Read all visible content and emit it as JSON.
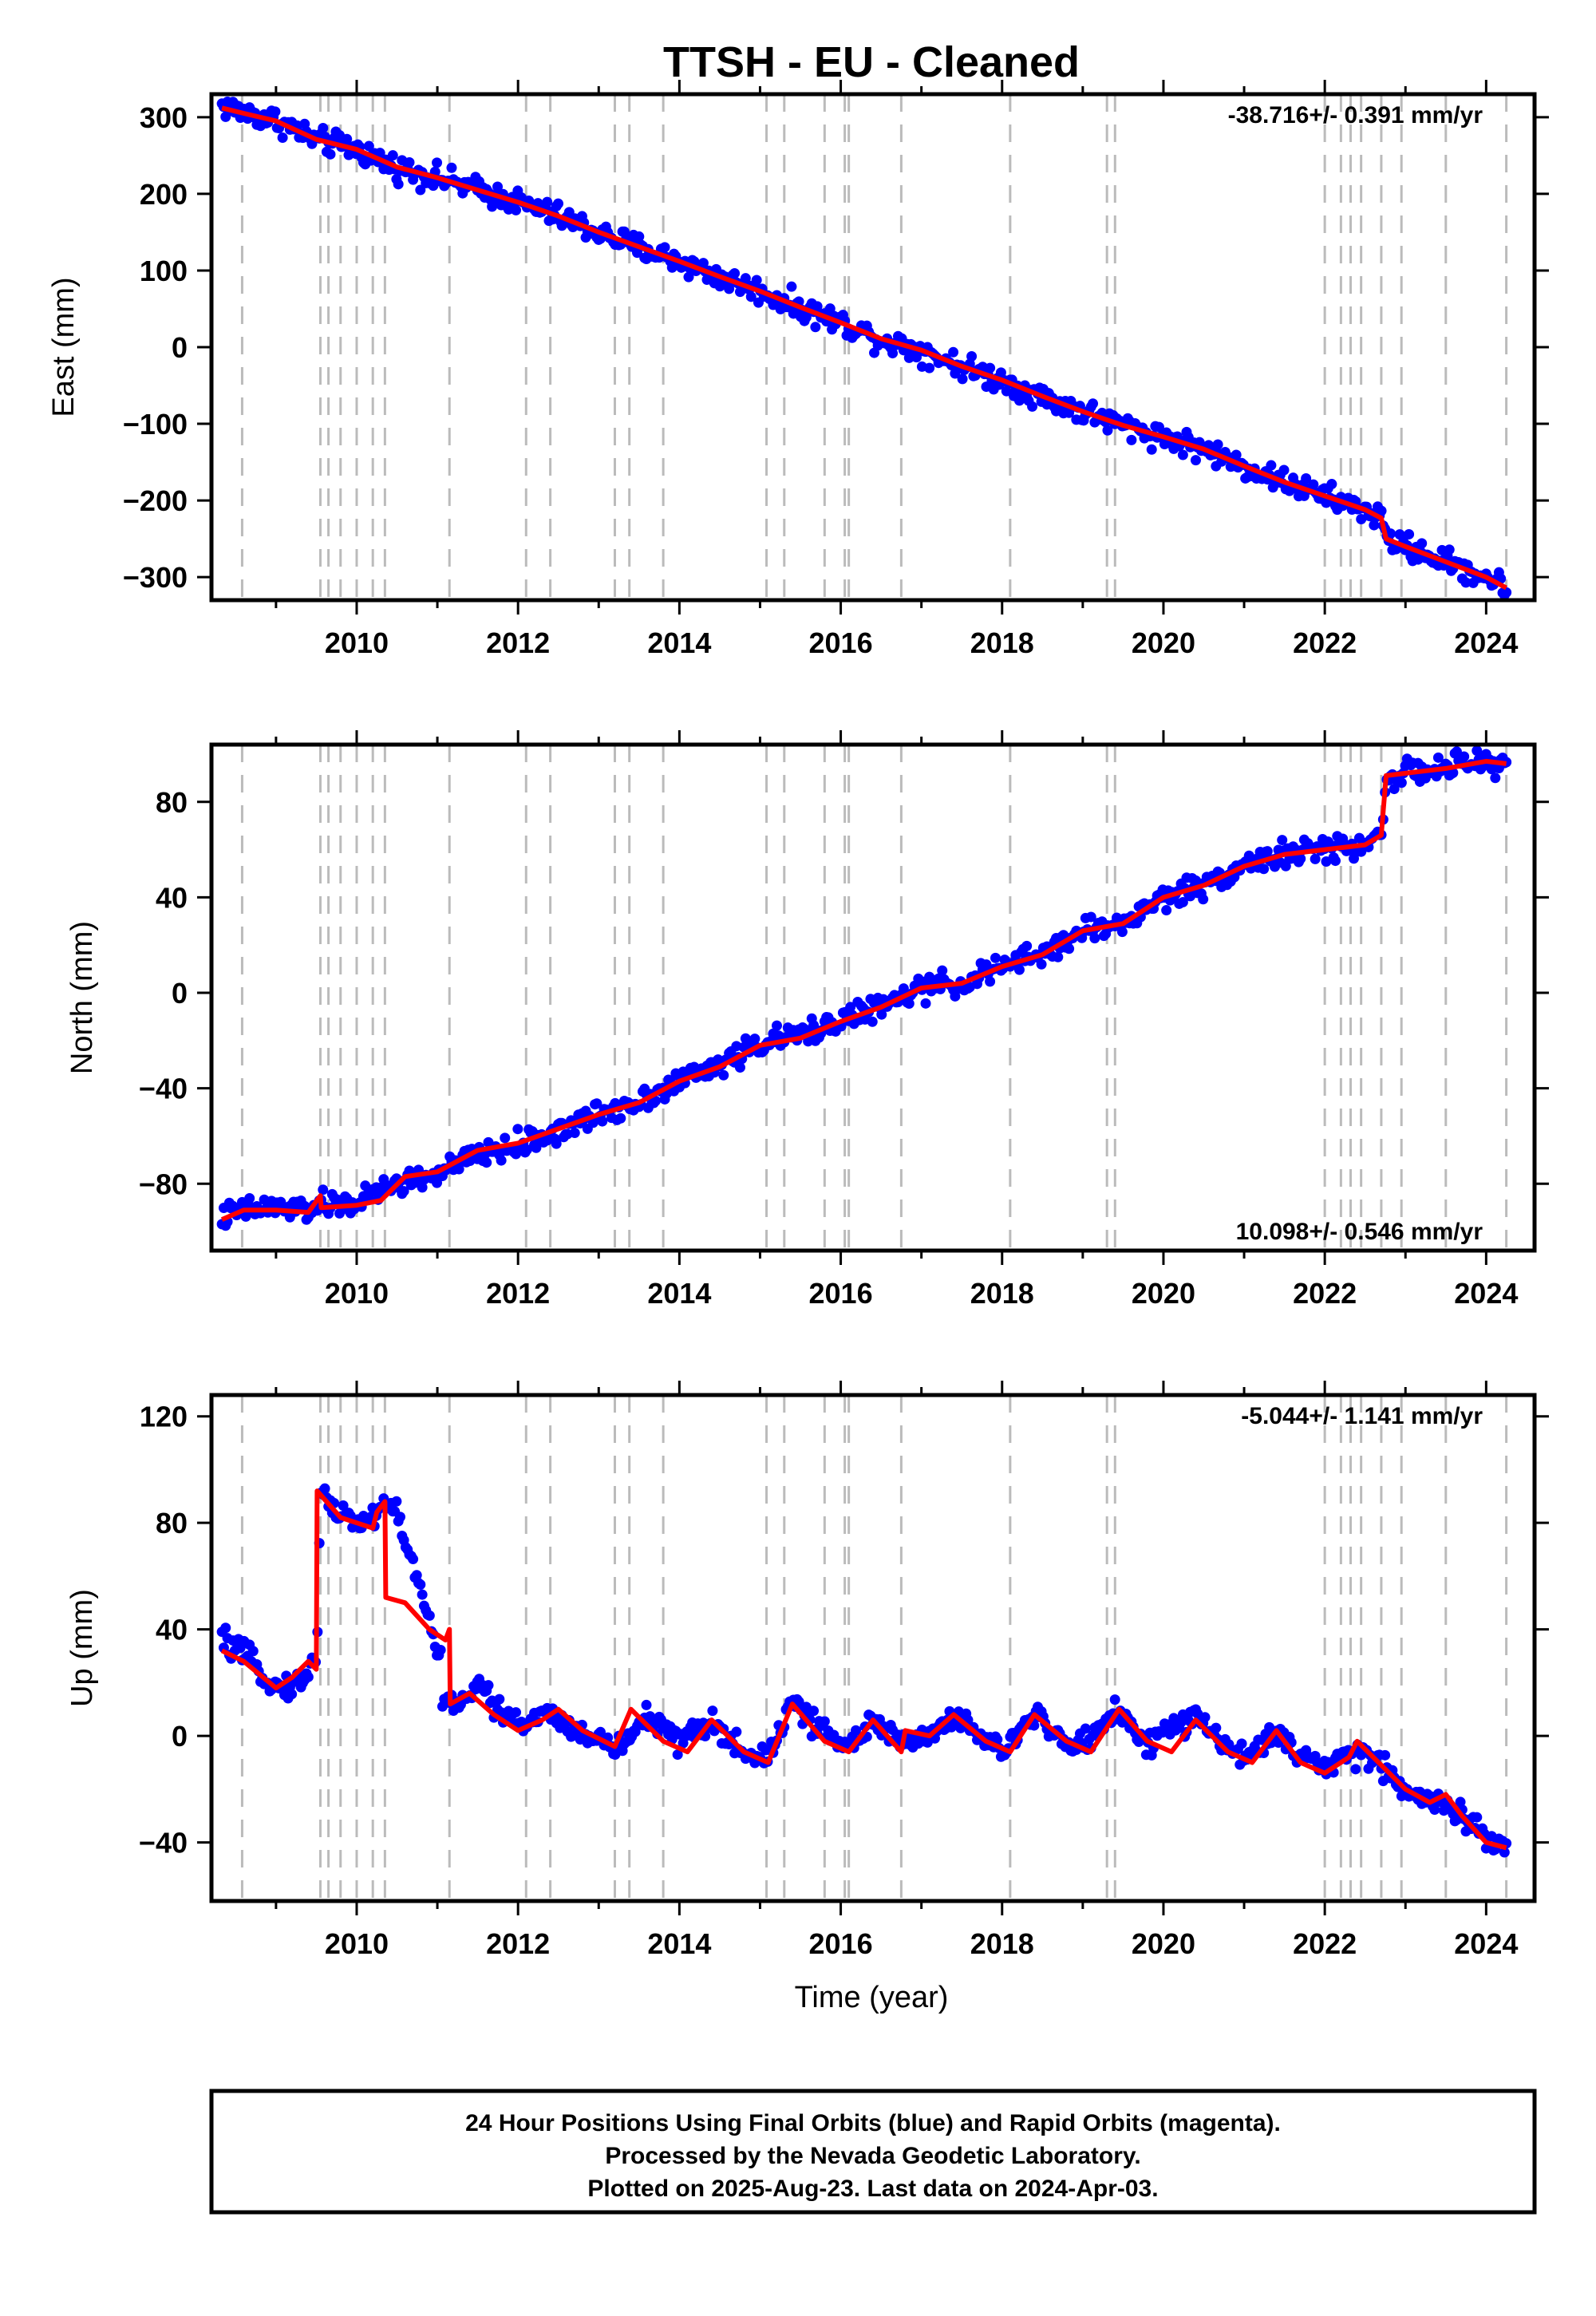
{
  "chart_data": [
    {
      "type": "scatter",
      "title": "TTSH  - EU - Cleaned",
      "xlabel": "",
      "ylabel": "East (mm)",
      "xlim": [
        2008.2,
        2024.6
      ],
      "ylim": [
        -330,
        330
      ],
      "x_ticks": [
        2010,
        2012,
        2014,
        2016,
        2018,
        2020,
        2022,
        2024
      ],
      "y_ticks": [
        300,
        200,
        100,
        0,
        -100,
        -200,
        -300
      ],
      "rate_label": "-38.716+/- 0.391 mm/yr",
      "rate_position": "top-right",
      "series": [
        {
          "color": "#0000ff",
          "style": "points",
          "x": [
            2008.33,
            2008.6,
            2009.0,
            2009.5,
            2010.0,
            2010.5,
            2011.0,
            2011.5,
            2012.0,
            2012.5,
            2013.0,
            2013.5,
            2014.0,
            2014.5,
            2015.0,
            2015.5,
            2016.0,
            2016.5,
            2017.0,
            2017.5,
            2018.0,
            2018.5,
            2019.0,
            2019.5,
            2020.0,
            2020.5,
            2021.0,
            2021.5,
            2022.0,
            2022.5,
            2022.7,
            2022.76,
            2023.0,
            2023.5,
            2024.0,
            2024.25
          ],
          "y": [
            315,
            306,
            296,
            270,
            258,
            234,
            221,
            205,
            189,
            171,
            149,
            130,
            112,
            91,
            73,
            51,
            32,
            10,
            -4,
            -25,
            -43,
            -65,
            -84,
            -102,
            -117,
            -133,
            -156,
            -176,
            -194,
            -212,
            -224,
            -250,
            -260,
            -280,
            -300,
            -315
          ]
        },
        {
          "color": "#ff0000",
          "style": "line",
          "x": [
            2008.33,
            2008.6,
            2009.0,
            2009.5,
            2010.0,
            2010.5,
            2011.0,
            2011.5,
            2012.0,
            2012.5,
            2013.0,
            2013.5,
            2014.0,
            2014.5,
            2015.0,
            2015.5,
            2016.0,
            2016.5,
            2017.0,
            2017.5,
            2018.0,
            2018.5,
            2019.0,
            2019.5,
            2020.0,
            2020.5,
            2021.0,
            2021.5,
            2022.0,
            2022.5,
            2022.7,
            2022.76,
            2023.0,
            2023.5,
            2024.0,
            2024.25
          ],
          "y": [
            312,
            305,
            295,
            271,
            258,
            235,
            221,
            205,
            189,
            171,
            150,
            131,
            112,
            92,
            73,
            52,
            32,
            11,
            -4,
            -25,
            -43,
            -64,
            -84,
            -102,
            -117,
            -133,
            -155,
            -176,
            -194,
            -212,
            -223,
            -250,
            -260,
            -280,
            -300,
            -314
          ]
        }
      ]
    },
    {
      "type": "scatter",
      "title": "",
      "xlabel": "",
      "ylabel": "North (mm)",
      "xlim": [
        2008.2,
        2024.6
      ],
      "ylim": [
        -108,
        104
      ],
      "x_ticks": [
        2010,
        2012,
        2014,
        2016,
        2018,
        2020,
        2022,
        2024
      ],
      "y_ticks": [
        80,
        40,
        0,
        -40,
        -80
      ],
      "rate_label": "10.098+/- 0.546 mm/yr",
      "rate_position": "bottom-right",
      "series": [
        {
          "color": "#0000ff",
          "style": "points",
          "x": [
            2008.33,
            2008.6,
            2009.0,
            2009.4,
            2009.55,
            2010.0,
            2010.5,
            2011.0,
            2011.5,
            2012.0,
            2012.5,
            2013.0,
            2013.5,
            2014.0,
            2014.5,
            2015.0,
            2015.5,
            2016.0,
            2016.5,
            2017.0,
            2017.5,
            2018.0,
            2018.5,
            2019.0,
            2019.5,
            2020.0,
            2020.5,
            2021.0,
            2021.5,
            2022.0,
            2022.5,
            2022.7,
            2022.76,
            2023.0,
            2023.5,
            2024.0,
            2024.25
          ],
          "y": [
            -94,
            -91,
            -90,
            -91,
            -89,
            -88,
            -80,
            -76,
            -68,
            -64,
            -58,
            -51,
            -45,
            -37,
            -30,
            -21,
            -18,
            -11,
            -6,
            2,
            4,
            11,
            16,
            26,
            29,
            40,
            45,
            54,
            58,
            60,
            62,
            66,
            91,
            92,
            94,
            97,
            95
          ]
        },
        {
          "color": "#ff0000",
          "style": "line",
          "x": [
            2008.33,
            2008.6,
            2009.0,
            2009.4,
            2009.55,
            2009.56,
            2010.0,
            2010.3,
            2010.6,
            2011.0,
            2011.5,
            2012.0,
            2012.5,
            2013.0,
            2013.5,
            2014.0,
            2014.5,
            2015.0,
            2015.5,
            2016.0,
            2016.5,
            2017.0,
            2017.5,
            2018.0,
            2018.5,
            2019.0,
            2019.5,
            2020.0,
            2020.5,
            2021.0,
            2021.5,
            2022.0,
            2022.5,
            2022.7,
            2022.76,
            2023.0,
            2023.5,
            2024.0,
            2024.25
          ],
          "y": [
            -95,
            -91,
            -91,
            -92,
            -85,
            -90,
            -89,
            -87,
            -77,
            -75,
            -66,
            -63,
            -57,
            -51,
            -46,
            -37,
            -31,
            -22,
            -19,
            -12,
            -6,
            2,
            4,
            11,
            16,
            26,
            29,
            40,
            45,
            53,
            58,
            60,
            62,
            66,
            91,
            92,
            94,
            97,
            96
          ]
        }
      ]
    },
    {
      "type": "scatter",
      "title": "",
      "xlabel": "Time (year)",
      "ylabel": "Up (mm)",
      "xlim": [
        2008.2,
        2024.6
      ],
      "ylim": [
        -62,
        128
      ],
      "x_ticks": [
        2010,
        2012,
        2014,
        2016,
        2018,
        2020,
        2022,
        2024
      ],
      "y_ticks": [
        120,
        80,
        40,
        0,
        -40
      ],
      "rate_label": "-5.044+/- 1.141 mm/yr",
      "rate_position": "top-right",
      "series": [
        {
          "color": "#0000ff",
          "style": "points",
          "x": [
            2008.33,
            2008.6,
            2008.8,
            2009.0,
            2009.3,
            2009.5,
            2009.56,
            2009.7,
            2010.0,
            2010.2,
            2010.35,
            2010.5,
            2011.2,
            2011.5,
            2012.0,
            2012.4,
            2012.8,
            2013.3,
            2013.6,
            2014.0,
            2014.4,
            2014.8,
            2015.1,
            2015.4,
            2015.8,
            2016.1,
            2016.4,
            2016.8,
            2017.1,
            2017.4,
            2017.8,
            2018.0,
            2018.4,
            2018.8,
            2019.1,
            2019.4,
            2019.8,
            2020.0,
            2020.4,
            2020.8,
            2021.0,
            2021.4,
            2021.7,
            2022.0,
            2022.4,
            2022.7,
            2023.0,
            2023.4,
            2023.7,
            2024.0,
            2024.25
          ],
          "y": [
            36,
            30,
            25,
            18,
            20,
            28,
            95,
            85,
            80,
            82,
            88,
            84,
            12,
            18,
            4,
            10,
            0,
            -4,
            8,
            -2,
            4,
            -6,
            -8,
            12,
            2,
            -4,
            6,
            -4,
            0,
            8,
            -2,
            -6,
            8,
            -4,
            0,
            10,
            -3,
            2,
            6,
            -4,
            -8,
            2,
            -8,
            -12,
            -6,
            -10,
            -20,
            -25,
            -28,
            -40,
            -42
          ]
        },
        {
          "color": "#ff0000",
          "style": "line",
          "x": [
            2008.33,
            2008.6,
            2009.0,
            2009.2,
            2009.4,
            2009.5,
            2009.51,
            2009.8,
            2010.0,
            2010.2,
            2010.25,
            2010.35,
            2010.36,
            2010.6,
            2010.9,
            2011.1,
            2011.15,
            2011.16,
            2011.4,
            2011.7,
            2012.0,
            2012.3,
            2012.5,
            2012.8,
            2013.2,
            2013.4,
            2013.8,
            2014.1,
            2014.4,
            2014.8,
            2015.1,
            2015.4,
            2015.8,
            2016.1,
            2016.4,
            2016.75,
            2016.8,
            2017.1,
            2017.4,
            2017.8,
            2018.1,
            2018.4,
            2018.8,
            2019.1,
            2019.45,
            2019.8,
            2020.1,
            2020.4,
            2020.8,
            2021.1,
            2021.4,
            2021.7,
            2022.0,
            2022.3,
            2022.4,
            2022.6,
            2022.8,
            2023.0,
            2023.3,
            2023.5,
            2023.7,
            2024.0,
            2024.25
          ],
          "y": [
            32,
            28,
            18,
            22,
            28,
            25,
            92,
            82,
            80,
            78,
            84,
            88,
            52,
            50,
            40,
            36,
            40,
            12,
            16,
            8,
            2,
            6,
            10,
            2,
            -4,
            10,
            -2,
            -6,
            6,
            -6,
            -10,
            12,
            -2,
            -6,
            6,
            -6,
            2,
            0,
            8,
            -2,
            -6,
            8,
            -2,
            -6,
            10,
            -2,
            -6,
            6,
            -6,
            -10,
            2,
            -10,
            -14,
            -8,
            -2,
            -8,
            -14,
            -20,
            -25,
            -22,
            -30,
            -40,
            -42
          ]
        }
      ]
    }
  ],
  "vline_years": [
    2008.58,
    2009.55,
    2009.65,
    2009.8,
    2010.0,
    2010.2,
    2010.35,
    2011.15,
    2012.1,
    2012.4,
    2013.2,
    2013.38,
    2013.8,
    2015.08,
    2015.3,
    2015.8,
    2016.05,
    2016.1,
    2016.75,
    2018.1,
    2019.3,
    2019.4,
    2022.0,
    2022.2,
    2022.32,
    2022.45,
    2022.7,
    2022.95,
    2023.5,
    2024.25
  ],
  "colors": {
    "final_orbits": "#0000ff",
    "model_fit": "#ff0000",
    "steps": "#bbbbbb"
  },
  "footer": {
    "line1": "24 Hour Positions Using Final Orbits (blue) and Rapid Orbits (magenta).",
    "line2": "Processed by the Nevada Geodetic Laboratory.",
    "line3": "Plotted on 2025-Aug-23. Last data on 2024-Apr-03."
  }
}
